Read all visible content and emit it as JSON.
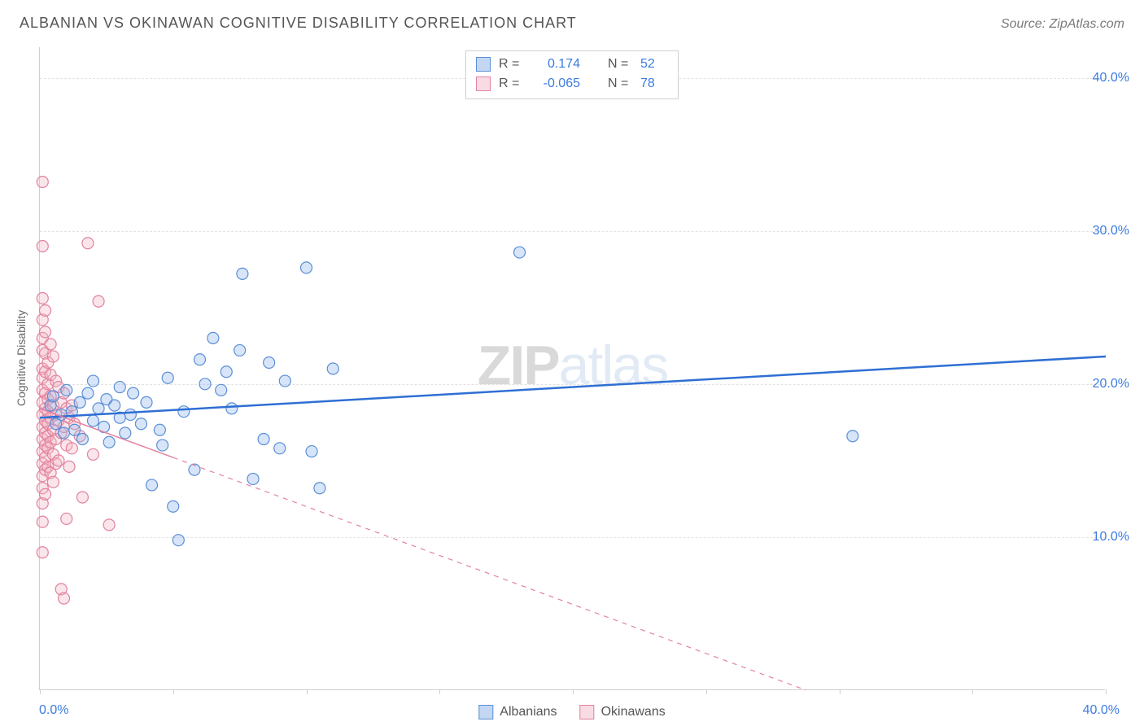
{
  "title": "ALBANIAN VS OKINAWAN COGNITIVE DISABILITY CORRELATION CHART",
  "source": "Source: ZipAtlas.com",
  "y_label": "Cognitive Disability",
  "watermark": {
    "part1": "ZIP",
    "part2": "atlas"
  },
  "chart": {
    "type": "scatter",
    "xlim": [
      0,
      40
    ],
    "ylim": [
      0,
      42
    ],
    "background_color": "#ffffff",
    "grid_color": "#e2e2e2",
    "axis_color": "#cfcfcf",
    "y_ticks": [
      {
        "v": 10,
        "label": "10.0%"
      },
      {
        "v": 20,
        "label": "20.0%"
      },
      {
        "v": 30,
        "label": "30.0%"
      },
      {
        "v": 40,
        "label": "40.0%"
      }
    ],
    "x_ticks": [
      0,
      5,
      10,
      15,
      20,
      25,
      30,
      35,
      40
    ],
    "x_origin_label": "0.0%",
    "x_end_label": "40.0%",
    "series": {
      "albanians": {
        "label": "Albanians",
        "color_fill": "#8fb5ea",
        "color_stroke": "#5b8fd6",
        "marker_r": 7,
        "trend": {
          "color": "#2f6fd4",
          "start_y": 17.8,
          "end_y": 21.8
        },
        "R": "0.174",
        "N": "52",
        "points": [
          [
            0.4,
            18.6
          ],
          [
            0.5,
            19.2
          ],
          [
            0.6,
            17.4
          ],
          [
            0.8,
            18.0
          ],
          [
            0.9,
            16.8
          ],
          [
            1.0,
            19.6
          ],
          [
            1.2,
            18.2
          ],
          [
            1.3,
            17.0
          ],
          [
            1.5,
            18.8
          ],
          [
            1.6,
            16.4
          ],
          [
            1.8,
            19.4
          ],
          [
            2.0,
            17.6
          ],
          [
            2.0,
            20.2
          ],
          [
            2.2,
            18.4
          ],
          [
            2.4,
            17.2
          ],
          [
            2.5,
            19.0
          ],
          [
            2.6,
            16.2
          ],
          [
            2.8,
            18.6
          ],
          [
            3.0,
            17.8
          ],
          [
            3.0,
            19.8
          ],
          [
            3.2,
            16.8
          ],
          [
            3.4,
            18.0
          ],
          [
            3.5,
            19.4
          ],
          [
            3.8,
            17.4
          ],
          [
            4.0,
            18.8
          ],
          [
            4.2,
            13.4
          ],
          [
            4.5,
            17.0
          ],
          [
            4.8,
            20.4
          ],
          [
            5.0,
            12.0
          ],
          [
            5.2,
            9.8
          ],
          [
            5.4,
            18.2
          ],
          [
            6.0,
            21.6
          ],
          [
            6.2,
            20.0
          ],
          [
            6.5,
            23.0
          ],
          [
            6.8,
            19.6
          ],
          [
            7.0,
            20.8
          ],
          [
            7.2,
            18.4
          ],
          [
            7.5,
            22.2
          ],
          [
            7.6,
            27.2
          ],
          [
            8.0,
            13.8
          ],
          [
            8.4,
            16.4
          ],
          [
            8.6,
            21.4
          ],
          [
            9.0,
            15.8
          ],
          [
            9.2,
            20.2
          ],
          [
            10.0,
            27.6
          ],
          [
            10.2,
            15.6
          ],
          [
            10.5,
            13.2
          ],
          [
            11.0,
            21.0
          ],
          [
            18.0,
            28.6
          ],
          [
            30.5,
            16.6
          ],
          [
            5.8,
            14.4
          ],
          [
            4.6,
            16.0
          ]
        ]
      },
      "okinawans": {
        "label": "Okinawans",
        "color_fill": "#f2b6c4",
        "color_stroke": "#e282a0",
        "marker_r": 7,
        "trend": {
          "color": "#e282a0",
          "solid_end_x": 5,
          "start_y": 18.4,
          "y_at_solid_end": 15.2,
          "end_y": 0
        },
        "R": "-0.065",
        "N": "78",
        "points": [
          [
            0.1,
            33.2
          ],
          [
            0.1,
            29.0
          ],
          [
            0.1,
            25.6
          ],
          [
            0.1,
            24.2
          ],
          [
            0.1,
            23.0
          ],
          [
            0.1,
            22.2
          ],
          [
            0.1,
            21.0
          ],
          [
            0.1,
            20.4
          ],
          [
            0.1,
            19.6
          ],
          [
            0.1,
            18.8
          ],
          [
            0.1,
            18.0
          ],
          [
            0.1,
            17.2
          ],
          [
            0.1,
            16.4
          ],
          [
            0.1,
            15.6
          ],
          [
            0.1,
            14.8
          ],
          [
            0.1,
            14.0
          ],
          [
            0.1,
            13.2
          ],
          [
            0.1,
            12.2
          ],
          [
            0.1,
            11.0
          ],
          [
            0.1,
            9.0
          ],
          [
            0.2,
            24.8
          ],
          [
            0.2,
            23.4
          ],
          [
            0.2,
            22.0
          ],
          [
            0.2,
            20.8
          ],
          [
            0.2,
            19.4
          ],
          [
            0.2,
            18.4
          ],
          [
            0.2,
            17.6
          ],
          [
            0.2,
            16.8
          ],
          [
            0.2,
            16.0
          ],
          [
            0.2,
            15.2
          ],
          [
            0.2,
            14.4
          ],
          [
            0.2,
            12.8
          ],
          [
            0.3,
            21.4
          ],
          [
            0.3,
            20.0
          ],
          [
            0.3,
            19.0
          ],
          [
            0.3,
            18.2
          ],
          [
            0.3,
            17.4
          ],
          [
            0.3,
            16.6
          ],
          [
            0.3,
            15.8
          ],
          [
            0.3,
            14.6
          ],
          [
            0.4,
            22.6
          ],
          [
            0.4,
            20.6
          ],
          [
            0.4,
            19.2
          ],
          [
            0.4,
            17.8
          ],
          [
            0.4,
            16.2
          ],
          [
            0.4,
            14.2
          ],
          [
            0.5,
            21.8
          ],
          [
            0.5,
            18.6
          ],
          [
            0.5,
            17.0
          ],
          [
            0.5,
            15.4
          ],
          [
            0.5,
            13.6
          ],
          [
            0.6,
            20.2
          ],
          [
            0.6,
            18.0
          ],
          [
            0.6,
            16.4
          ],
          [
            0.6,
            14.8
          ],
          [
            0.7,
            19.8
          ],
          [
            0.7,
            17.6
          ],
          [
            0.7,
            15.0
          ],
          [
            0.8,
            18.8
          ],
          [
            0.8,
            16.8
          ],
          [
            0.8,
            6.6
          ],
          [
            0.9,
            19.4
          ],
          [
            0.9,
            17.2
          ],
          [
            0.9,
            6.0
          ],
          [
            1.0,
            18.4
          ],
          [
            1.0,
            16.0
          ],
          [
            1.0,
            11.2
          ],
          [
            1.1,
            17.8
          ],
          [
            1.1,
            14.6
          ],
          [
            1.2,
            18.6
          ],
          [
            1.2,
            15.8
          ],
          [
            1.3,
            17.4
          ],
          [
            1.5,
            16.6
          ],
          [
            1.6,
            12.6
          ],
          [
            1.8,
            29.2
          ],
          [
            2.0,
            15.4
          ],
          [
            2.2,
            25.4
          ],
          [
            2.6,
            10.8
          ]
        ]
      }
    }
  },
  "legend_stats": {
    "r_label": "R =",
    "n_label": "N ="
  }
}
